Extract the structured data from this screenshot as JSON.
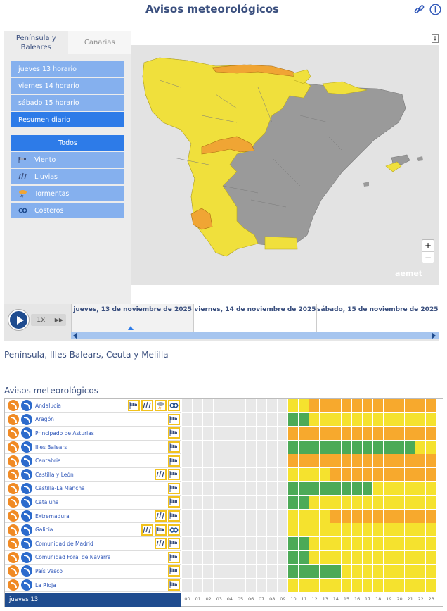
{
  "header": {
    "title": "Avisos meteorológicos",
    "link_icon": "link-icon",
    "info_icon": "info-icon"
  },
  "tabs": [
    {
      "label_line1": "Península y",
      "label_line2": "Baleares",
      "active": true
    },
    {
      "label_line1": "Canarias",
      "label_line2": "",
      "active": false
    }
  ],
  "time_buttons": [
    {
      "label": "jueves 13 horario"
    },
    {
      "label": "viernes 14 horario"
    },
    {
      "label": "sábado 15 horario"
    },
    {
      "label": "Resumen diario"
    }
  ],
  "filter_buttons": [
    {
      "label": "Todos",
      "icon": ""
    },
    {
      "label": "Viento",
      "icon": "wind-icon"
    },
    {
      "label": "Lluvias",
      "icon": "rain-icon"
    },
    {
      "label": "Tormentas",
      "icon": "storm-icon"
    },
    {
      "label": "Costeros",
      "icon": "coastal-icon"
    }
  ],
  "map": {
    "zoom_in": "+",
    "zoom_out": "−",
    "brand": "aemet",
    "colors": {
      "yellow": "#f0e03c",
      "orange": "#f0a534",
      "gray": "#9a9a9a",
      "sea": "#e3e3e3"
    }
  },
  "timeline": {
    "speed": "1x",
    "days": [
      {
        "label": "jueves, 13 de noviembre de 2025",
        "active": true
      },
      {
        "label": "viernes, 14 de noviembre de 2025",
        "active": false
      },
      {
        "label": "sábado, 15 de noviembre de 2025",
        "active": false
      }
    ]
  },
  "section": {
    "title": "Península, Illes Balears, Ceuta y Melilla",
    "subtitle": "Avisos meteorológicos"
  },
  "regions": [
    {
      "name": "Andalucía",
      "icons": [
        "wind",
        "rain",
        "storm",
        "coastal"
      ],
      "hours": [
        "w",
        "w",
        "w",
        "w",
        "w",
        "w",
        "w",
        "w",
        "w",
        "w",
        "y",
        "y",
        "o",
        "o",
        "o",
        "o",
        "o",
        "o",
        "o",
        "o",
        "o",
        "o",
        "o",
        "o"
      ]
    },
    {
      "name": "Aragón",
      "icons": [
        "wind"
      ],
      "hours": [
        "w",
        "w",
        "w",
        "w",
        "w",
        "w",
        "w",
        "w",
        "w",
        "w",
        "g",
        "g",
        "y",
        "y",
        "y",
        "y",
        "y",
        "y",
        "y",
        "y",
        "y",
        "y",
        "y",
        "y"
      ]
    },
    {
      "name": "Principado de Asturias",
      "icons": [
        "wind"
      ],
      "hours": [
        "w",
        "w",
        "w",
        "w",
        "w",
        "w",
        "w",
        "w",
        "w",
        "w",
        "o",
        "o",
        "o",
        "o",
        "o",
        "o",
        "o",
        "o",
        "o",
        "o",
        "o",
        "o",
        "o",
        "o"
      ]
    },
    {
      "name": "Illes Balears",
      "icons": [
        "wind"
      ],
      "hours": [
        "w",
        "w",
        "w",
        "w",
        "w",
        "w",
        "w",
        "w",
        "w",
        "w",
        "g",
        "g",
        "g",
        "g",
        "g",
        "g",
        "g",
        "g",
        "g",
        "g",
        "g",
        "g",
        "y",
        "y"
      ]
    },
    {
      "name": "Cantabria",
      "icons": [
        "wind"
      ],
      "hours": [
        "w",
        "w",
        "w",
        "w",
        "w",
        "w",
        "w",
        "w",
        "w",
        "w",
        "o",
        "o",
        "o",
        "o",
        "o",
        "o",
        "o",
        "o",
        "o",
        "o",
        "o",
        "o",
        "o",
        "o"
      ]
    },
    {
      "name": "Castilla y León",
      "icons": [
        "rain",
        "wind"
      ],
      "hours": [
        "w",
        "w",
        "w",
        "w",
        "w",
        "w",
        "w",
        "w",
        "w",
        "w",
        "y",
        "y",
        "y",
        "y",
        "o",
        "o",
        "o",
        "o",
        "o",
        "o",
        "o",
        "o",
        "o",
        "o"
      ]
    },
    {
      "name": "Castilla-La Mancha",
      "icons": [
        "wind"
      ],
      "hours": [
        "w",
        "w",
        "w",
        "w",
        "w",
        "w",
        "w",
        "w",
        "w",
        "w",
        "g",
        "g",
        "g",
        "g",
        "g",
        "g",
        "g",
        "g",
        "y",
        "y",
        "y",
        "y",
        "y",
        "y"
      ]
    },
    {
      "name": "Cataluña",
      "icons": [
        "wind"
      ],
      "hours": [
        "w",
        "w",
        "w",
        "w",
        "w",
        "w",
        "w",
        "w",
        "w",
        "w",
        "g",
        "g",
        "y",
        "y",
        "y",
        "y",
        "y",
        "y",
        "y",
        "y",
        "y",
        "y",
        "y",
        "y"
      ]
    },
    {
      "name": "Extremadura",
      "icons": [
        "rain",
        "wind"
      ],
      "hours": [
        "w",
        "w",
        "w",
        "w",
        "w",
        "w",
        "w",
        "w",
        "w",
        "w",
        "y",
        "y",
        "y",
        "y",
        "o",
        "o",
        "o",
        "o",
        "o",
        "o",
        "o",
        "o",
        "o",
        "o"
      ]
    },
    {
      "name": "Galicia",
      "icons": [
        "rain",
        "wind",
        "coastal"
      ],
      "hours": [
        "w",
        "w",
        "w",
        "w",
        "w",
        "w",
        "w",
        "w",
        "w",
        "w",
        "y",
        "y",
        "y",
        "y",
        "y",
        "y",
        "y",
        "y",
        "y",
        "y",
        "y",
        "y",
        "y",
        "y"
      ]
    },
    {
      "name": "Comunidad de Madrid",
      "icons": [
        "rain",
        "wind"
      ],
      "hours": [
        "w",
        "w",
        "w",
        "w",
        "w",
        "w",
        "w",
        "w",
        "w",
        "w",
        "g",
        "g",
        "y",
        "y",
        "y",
        "y",
        "y",
        "y",
        "y",
        "y",
        "y",
        "y",
        "y",
        "y"
      ]
    },
    {
      "name": "Comunidad Foral de Navarra",
      "icons": [
        "wind"
      ],
      "hours": [
        "w",
        "w",
        "w",
        "w",
        "w",
        "w",
        "w",
        "w",
        "w",
        "w",
        "g",
        "g",
        "y",
        "y",
        "y",
        "y",
        "y",
        "y",
        "y",
        "y",
        "y",
        "y",
        "y",
        "y"
      ]
    },
    {
      "name": "País Vasco",
      "icons": [
        "wind"
      ],
      "hours": [
        "w",
        "w",
        "w",
        "w",
        "w",
        "w",
        "w",
        "w",
        "w",
        "w",
        "g",
        "g",
        "g",
        "g",
        "g",
        "y",
        "y",
        "y",
        "y",
        "y",
        "y",
        "y",
        "y",
        "y"
      ]
    },
    {
      "name": "La Rioja",
      "icons": [
        "wind"
      ],
      "hours": [
        "w",
        "w",
        "w",
        "w",
        "w",
        "w",
        "w",
        "w",
        "w",
        "w",
        "y",
        "y",
        "y",
        "y",
        "y",
        "y",
        "y",
        "y",
        "y",
        "y",
        "y",
        "y",
        "y",
        "y"
      ]
    }
  ],
  "footer": {
    "day_label": "jueves 13",
    "hours": [
      "00",
      "01",
      "02",
      "03",
      "04",
      "05",
      "06",
      "07",
      "08",
      "09",
      "10",
      "11",
      "12",
      "13",
      "14",
      "15",
      "16",
      "17",
      "18",
      "19",
      "20",
      "21",
      "22",
      "23"
    ]
  },
  "cell_colors": {
    "w": "#e8e8e8",
    "y": "#f5e22e",
    "o": "#f7a92d",
    "g": "#4caa57"
  }
}
